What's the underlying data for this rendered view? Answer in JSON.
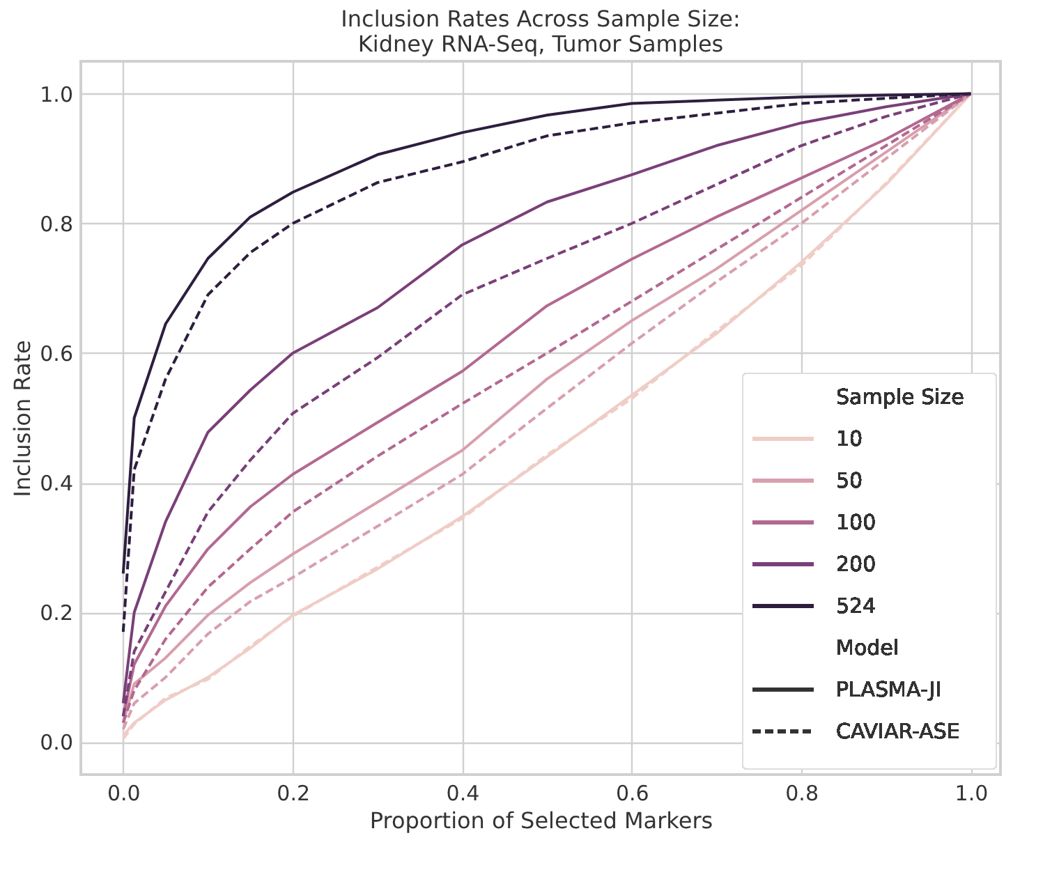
{
  "chart_data": {
    "type": "line",
    "title": "Inclusion Rates Across Sample Size:\nKidney RNA-Seq, Tumor Samples",
    "xlabel": "Proportion of Selected Markers",
    "ylabel": "Inclusion Rate",
    "legend_title": "Sample Size",
    "annotations": [
      "Model",
      "PLASMA-JI",
      "CAVIAR-ASE"
    ],
    "x": [
      0,
      0.013,
      0.05,
      0.1,
      0.15,
      0.2,
      0.3,
      0.4,
      0.5,
      0.6,
      0.7,
      0.8,
      0.9,
      1.0
    ],
    "series": [
      {
        "name": "10",
        "color": "#efcdc6",
        "line_style": "solid",
        "values": [
          0.01,
          0.03,
          0.065,
          0.1,
          0.145,
          0.196,
          0.267,
          0.348,
          0.44,
          0.535,
          0.63,
          0.74,
          0.86,
          1.0
        ]
      },
      {
        "name": "50",
        "color": "#d89fad",
        "line_style": "solid",
        "values": [
          0.03,
          0.09,
          0.13,
          0.196,
          0.246,
          0.29,
          0.37,
          0.45,
          0.56,
          0.65,
          0.73,
          0.82,
          0.91,
          1.0
        ]
      },
      {
        "name": "100",
        "color": "#b36890",
        "line_style": "solid",
        "values": [
          0.04,
          0.12,
          0.21,
          0.298,
          0.363,
          0.413,
          0.493,
          0.572,
          0.673,
          0.745,
          0.81,
          0.87,
          0.93,
          1.0
        ]
      },
      {
        "name": "200",
        "color": "#7a3f78",
        "line_style": "solid",
        "values": [
          0.06,
          0.2,
          0.34,
          0.478,
          0.543,
          0.6,
          0.67,
          0.767,
          0.833,
          0.875,
          0.92,
          0.955,
          0.98,
          1.0
        ]
      },
      {
        "name": "524",
        "color": "#2d1e3e",
        "line_style": "solid",
        "values": [
          0.26,
          0.5,
          0.645,
          0.746,
          0.81,
          0.848,
          0.906,
          0.94,
          0.967,
          0.985,
          0.99,
          0.995,
          0.998,
          1.0
        ]
      },
      {
        "color": "#efcdc6",
        "line_style": "dashed",
        "values": [
          0.005,
          0.028,
          0.068,
          0.097,
          0.148,
          0.194,
          0.27,
          0.345,
          0.443,
          0.53,
          0.634,
          0.735,
          0.862,
          1.0
        ]
      },
      {
        "color": "#d89fad",
        "line_style": "dashed",
        "values": [
          0.02,
          0.06,
          0.1,
          0.167,
          0.217,
          0.254,
          0.333,
          0.413,
          0.515,
          0.615,
          0.71,
          0.8,
          0.9,
          1.0
        ]
      },
      {
        "color": "#b36890",
        "line_style": "dashed",
        "values": [
          0.03,
          0.08,
          0.159,
          0.239,
          0.298,
          0.355,
          0.441,
          0.522,
          0.6,
          0.68,
          0.76,
          0.84,
          0.92,
          1.0
        ]
      },
      {
        "color": "#7a3f78",
        "line_style": "dashed",
        "values": [
          0.04,
          0.14,
          0.232,
          0.355,
          0.435,
          0.507,
          0.593,
          0.69,
          0.746,
          0.8,
          0.86,
          0.92,
          0.965,
          1.0
        ]
      },
      {
        "color": "#2d1e3e",
        "line_style": "dashed",
        "values": [
          0.17,
          0.42,
          0.56,
          0.69,
          0.755,
          0.8,
          0.863,
          0.895,
          0.935,
          0.955,
          0.97,
          0.985,
          0.993,
          1.0
        ]
      }
    ],
    "xlim": [
      -0.05,
      1.035
    ],
    "ylim": [
      -0.05,
      1.05
    ],
    "xticks": [
      {
        "value": 0,
        "label": "0.0"
      },
      0.2,
      0.4,
      0.6,
      0.8,
      {
        "value": 1,
        "label": "1.0"
      }
    ],
    "yticks": [
      {
        "value": 0,
        "label": "0.0"
      },
      0.2,
      0.4,
      0.6,
      0.8,
      {
        "value": 1,
        "label": "1.0"
      }
    ],
    "grid": true,
    "legend": "bottom right"
  }
}
